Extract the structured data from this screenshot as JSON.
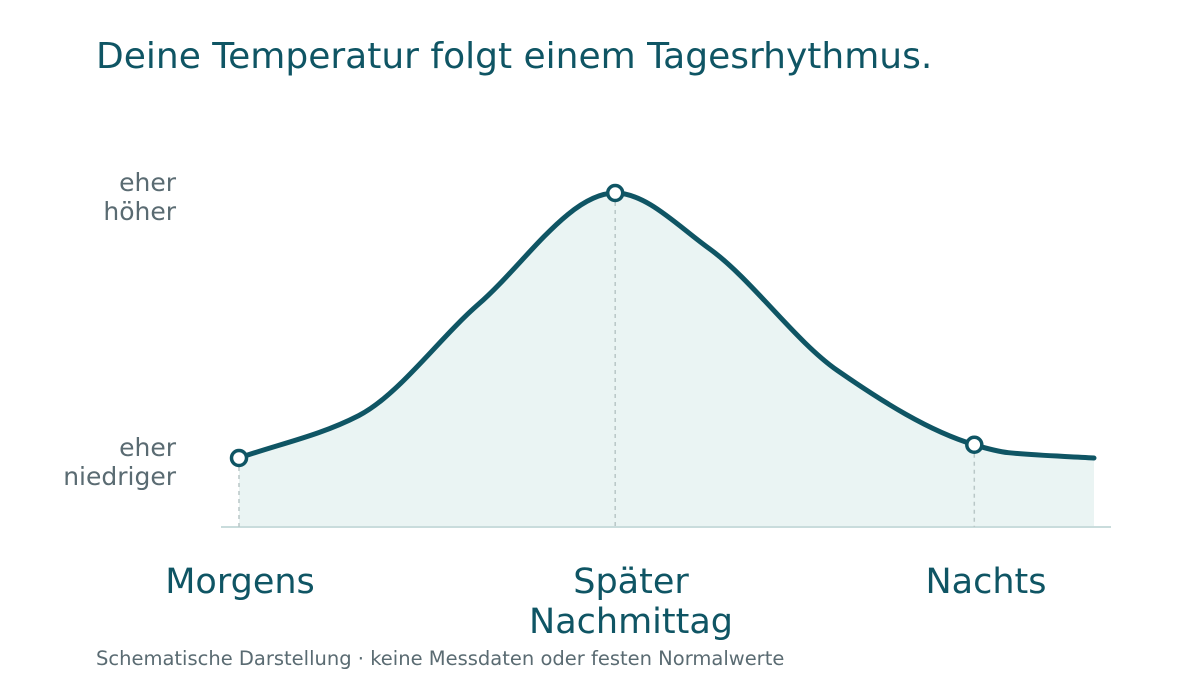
{
  "title": "Deine Temperatur folgt einem Tagesrhythmus.",
  "footnote": "Schematische Darstellung · keine Messdaten oder festen Normalwerte",
  "y_labels": {
    "high": [
      "eher",
      "höher"
    ],
    "low": [
      "eher",
      "niedriger"
    ]
  },
  "x_labels": {
    "morning": [
      "Morgens"
    ],
    "afternoon": [
      "Später",
      "Nachmittag"
    ],
    "night": [
      "Nachts"
    ]
  },
  "colors": {
    "line": "#0f5564",
    "fill": "#eaf4f3",
    "axis": "#c9dcdc",
    "guide": "#b9c7c7",
    "marker_fill": "#ffffff"
  },
  "chart_data": {
    "type": "area",
    "title": "Deine Temperatur folgt einem Tagesrhythmus.",
    "xlabel": "",
    "ylabel": "",
    "note": "schematic",
    "x_ticks": [
      "Morgens",
      "Später Nachmittag",
      "Nachts"
    ],
    "y_ticks": [
      "eher niedriger",
      "eher höher"
    ],
    "ylim": [
      0,
      1
    ],
    "xlim": [
      0,
      1
    ],
    "grid": false,
    "legend": "none",
    "series": [
      {
        "x": [
          0,
          0.14,
          0.28,
          0.44,
          0.55,
          0.7,
          0.86,
          0.9,
          1.0
        ],
        "y": [
          0.0,
          0.16,
          0.58,
          1.0,
          0.79,
          0.33,
          0.05,
          0.02,
          0.0
        ]
      }
    ],
    "markers": [
      {
        "label": "Morgens",
        "x": 0.0,
        "y": 0.0
      },
      {
        "label": "Später Nachmittag",
        "x": 0.44,
        "y": 1.0
      },
      {
        "label": "Nachts",
        "x": 0.86,
        "y": 0.05
      }
    ]
  }
}
